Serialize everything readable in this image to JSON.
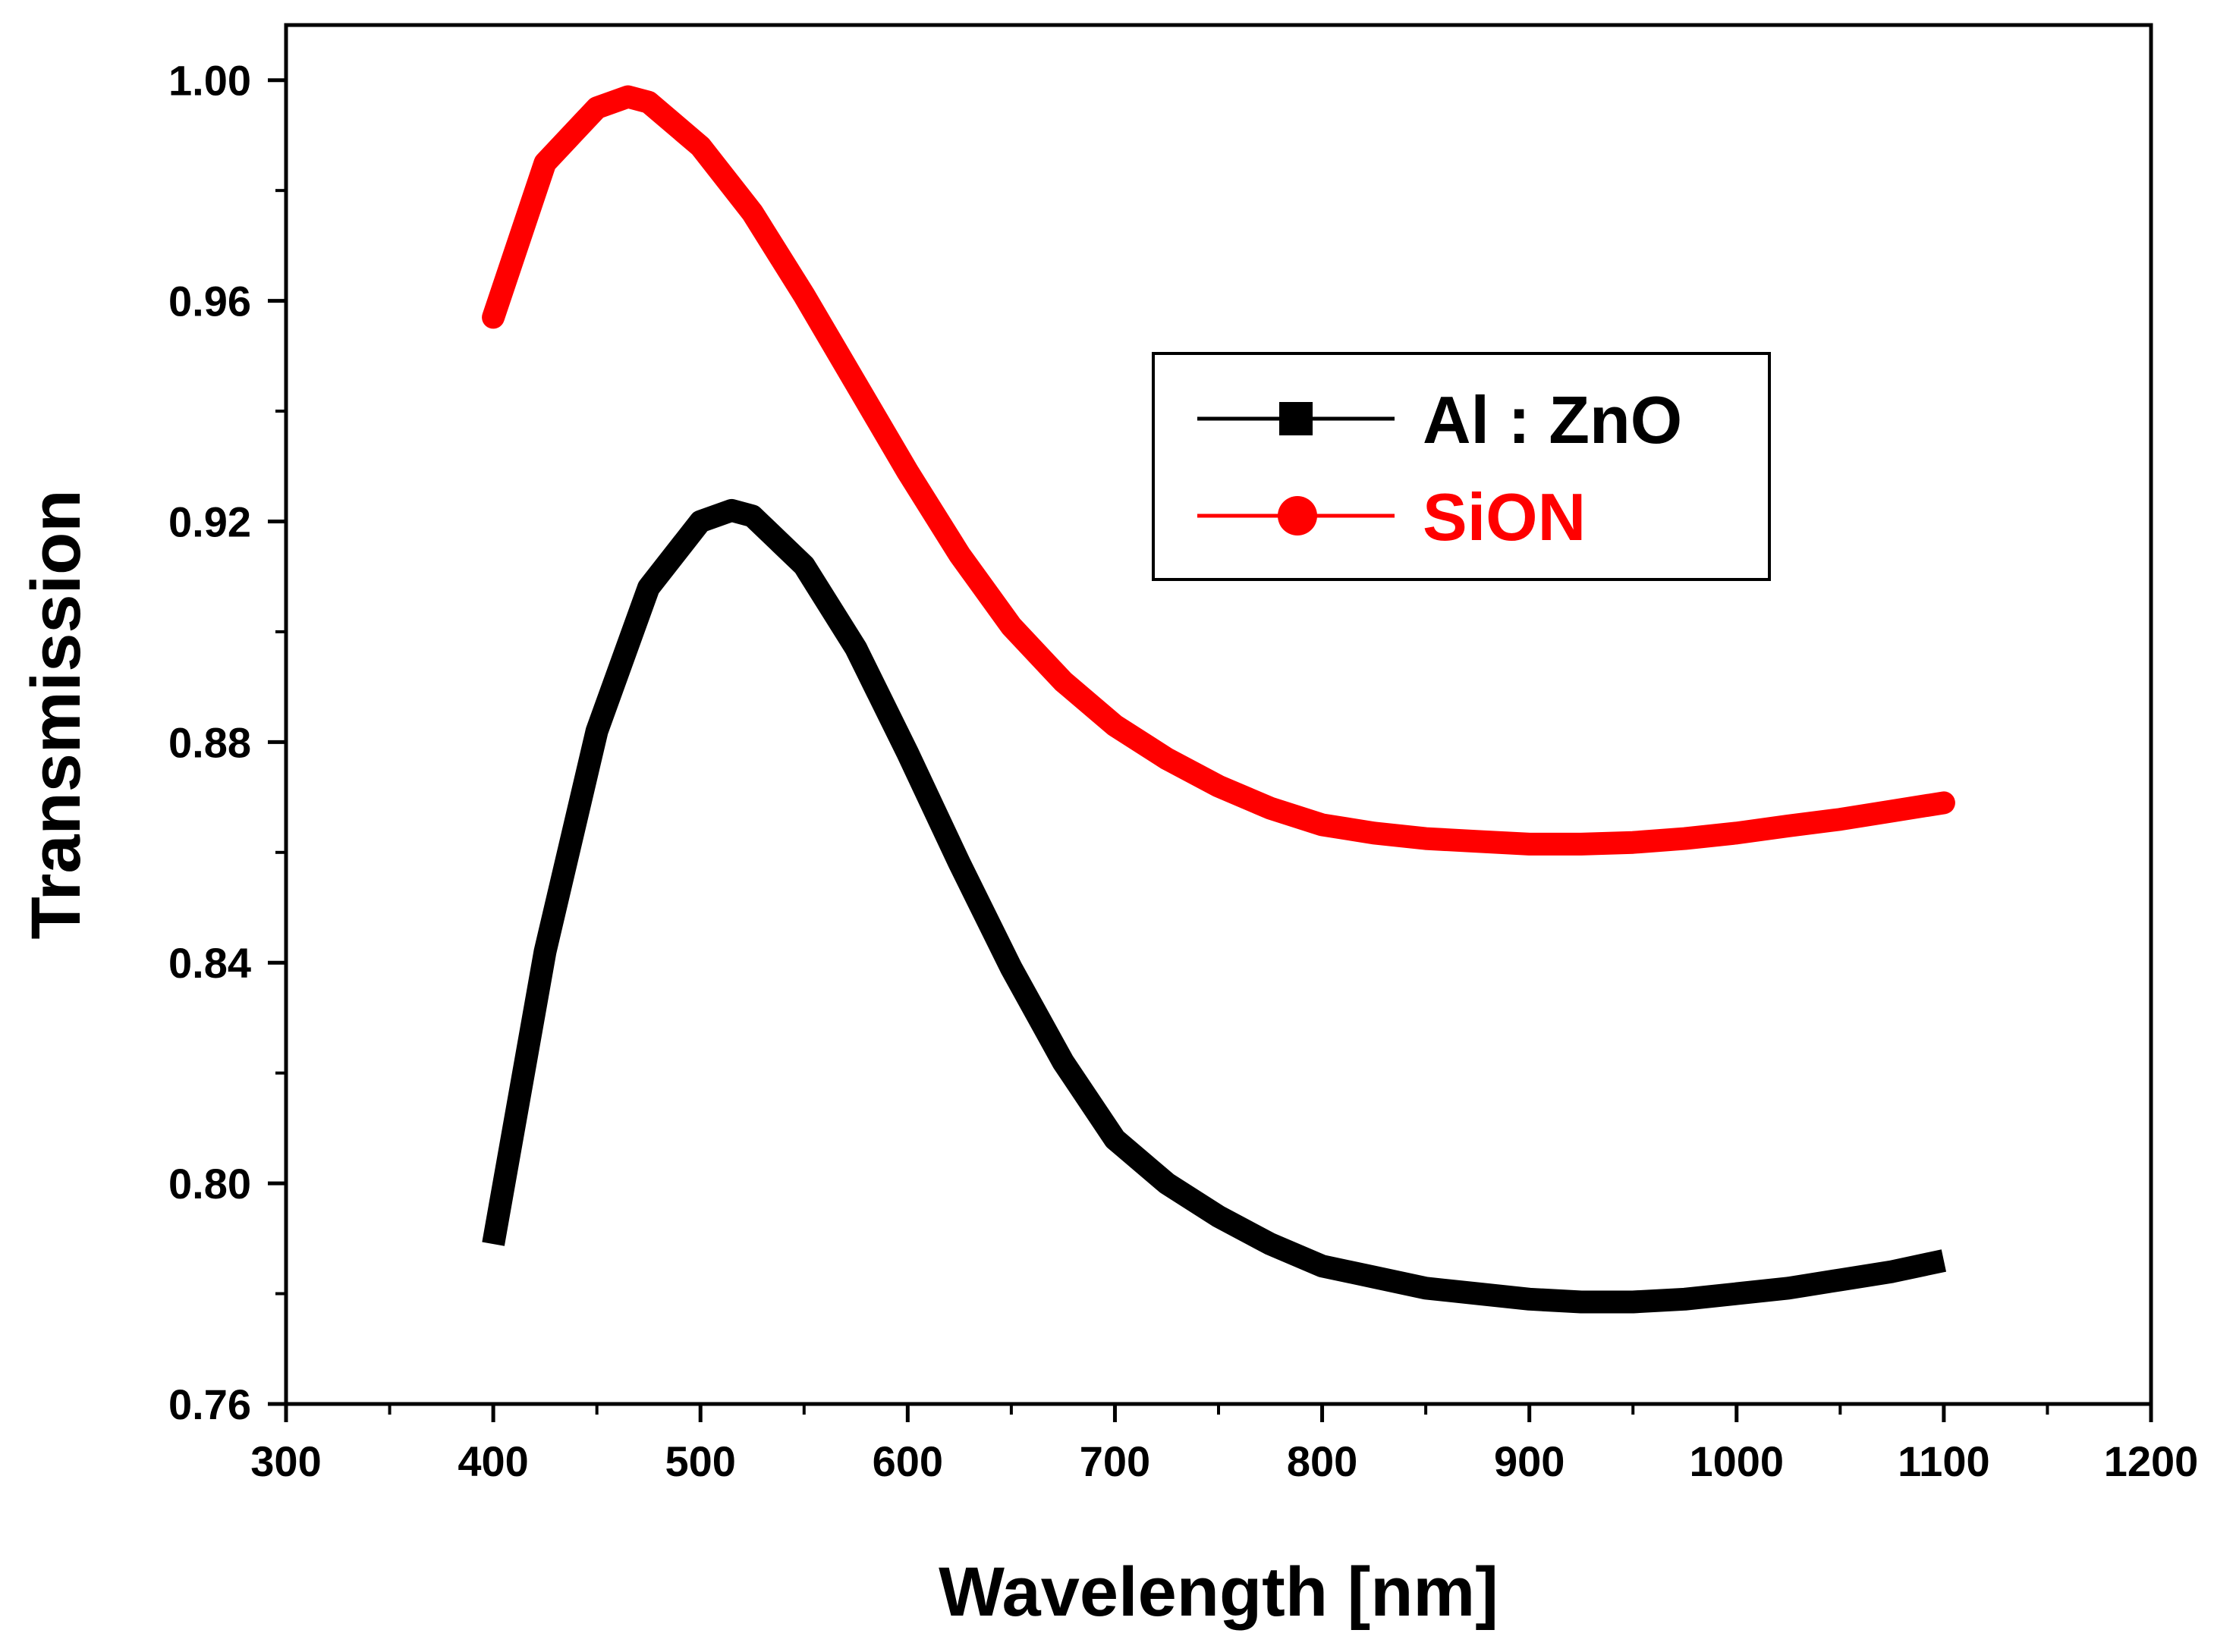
{
  "chart_data": {
    "type": "line",
    "title": "",
    "xlabel": "Wavelength [nm]",
    "ylabel": "Transmission",
    "xlim": [
      300,
      1200
    ],
    "ylim": [
      0.76,
      1.01
    ],
    "xticks": [
      300,
      400,
      500,
      600,
      700,
      800,
      900,
      1000,
      1100,
      1200
    ],
    "xtick_labels": [
      "300",
      "400",
      "500",
      "600",
      "700",
      "800",
      "900",
      "1000",
      "1100",
      "1200"
    ],
    "yticks": [
      0.76,
      0.8,
      0.84,
      0.88,
      0.92,
      0.96,
      1.0
    ],
    "ytick_labels": [
      "0.76",
      "0.80",
      "0.84",
      "0.88",
      "0.92",
      "0.96",
      "1.00"
    ],
    "grid": false,
    "legend_position": "upper-right",
    "series": [
      {
        "name": "Al : ZnO",
        "color": "#000000",
        "marker": "square",
        "x": [
          400,
          425,
          450,
          475,
          500,
          515,
          525,
          550,
          575,
          600,
          625,
          650,
          675,
          700,
          725,
          750,
          775,
          800,
          825,
          850,
          875,
          900,
          925,
          950,
          975,
          1000,
          1025,
          1050,
          1075,
          1100
        ],
        "y": [
          0.789,
          0.842,
          0.882,
          0.908,
          0.92,
          0.922,
          0.921,
          0.912,
          0.897,
          0.878,
          0.858,
          0.839,
          0.822,
          0.808,
          0.8,
          0.794,
          0.789,
          0.785,
          0.783,
          0.781,
          0.78,
          0.779,
          0.7785,
          0.7785,
          0.779,
          0.78,
          0.781,
          0.7825,
          0.784,
          0.786
        ]
      },
      {
        "name": "SiON",
        "color": "#ff0000",
        "marker": "circle",
        "x": [
          400,
          425,
          450,
          465,
          475,
          500,
          525,
          550,
          575,
          600,
          625,
          650,
          675,
          700,
          725,
          750,
          775,
          800,
          825,
          850,
          875,
          900,
          925,
          950,
          975,
          1000,
          1025,
          1050,
          1075,
          1100
        ],
        "y": [
          0.957,
          0.985,
          0.995,
          0.997,
          0.996,
          0.988,
          0.976,
          0.961,
          0.945,
          0.929,
          0.914,
          0.901,
          0.891,
          0.883,
          0.877,
          0.872,
          0.868,
          0.865,
          0.8635,
          0.8625,
          0.862,
          0.8615,
          0.8615,
          0.8618,
          0.8625,
          0.8635,
          0.8648,
          0.866,
          0.8675,
          0.869
        ]
      }
    ]
  }
}
